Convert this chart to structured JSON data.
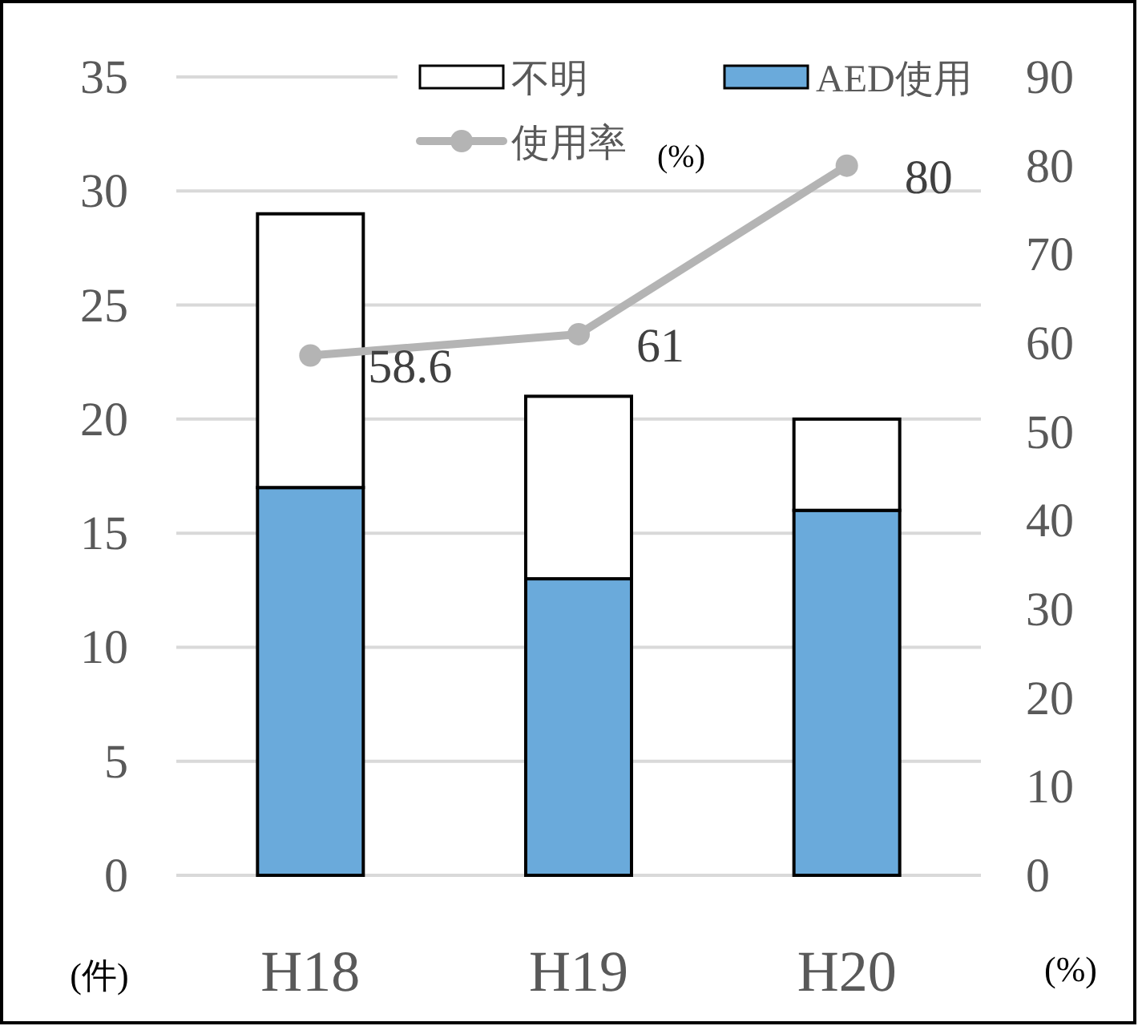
{
  "chart_data": {
    "type": "bar",
    "stacked": true,
    "categories": [
      "H18",
      "H19",
      "H20"
    ],
    "ylabel": "(件)",
    "y2label": "(%)",
    "ylim": [
      0,
      35
    ],
    "yticks": [
      0,
      5,
      10,
      15,
      20,
      25,
      30,
      35
    ],
    "y2lim": [
      0,
      90
    ],
    "y2ticks": [
      0,
      10,
      20,
      30,
      40,
      50,
      60,
      70,
      80,
      90
    ],
    "grid": "y",
    "legend": "top",
    "annotations": [
      "(%)"
    ],
    "series": [
      {
        "name": "AED使用",
        "color": "#6aaadb",
        "values": [
          17,
          13,
          16
        ]
      },
      {
        "name": "不明",
        "color": "#ffffff",
        "values": [
          12,
          8,
          4
        ]
      },
      {
        "name": "使用率",
        "type": "line",
        "axis": "y2",
        "color": "#b4b4b4",
        "marker": "circle",
        "line_style": "solid",
        "data_labels": true,
        "values": [
          58.6,
          61,
          80
        ]
      }
    ]
  }
}
